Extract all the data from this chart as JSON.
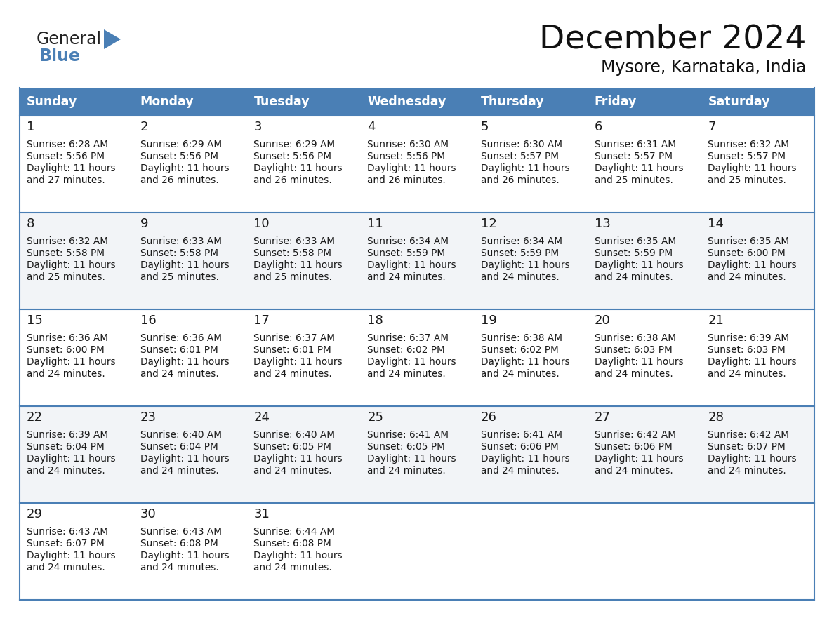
{
  "title": "December 2024",
  "subtitle": "Mysore, Karnataka, India",
  "header_color": "#4a7fb5",
  "header_text_color": "#ffffff",
  "cell_bg_even": "#f2f4f7",
  "cell_bg_odd": "#ffffff",
  "border_color": "#4a7fb5",
  "text_color": "#1a1a1a",
  "days_of_week": [
    "Sunday",
    "Monday",
    "Tuesday",
    "Wednesday",
    "Thursday",
    "Friday",
    "Saturday"
  ],
  "calendar_data": [
    [
      {
        "day": 1,
        "sunrise": "6:28 AM",
        "sunset": "5:56 PM",
        "daylight": "11 hours and 27 minutes"
      },
      {
        "day": 2,
        "sunrise": "6:29 AM",
        "sunset": "5:56 PM",
        "daylight": "11 hours and 26 minutes"
      },
      {
        "day": 3,
        "sunrise": "6:29 AM",
        "sunset": "5:56 PM",
        "daylight": "11 hours and 26 minutes"
      },
      {
        "day": 4,
        "sunrise": "6:30 AM",
        "sunset": "5:56 PM",
        "daylight": "11 hours and 26 minutes"
      },
      {
        "day": 5,
        "sunrise": "6:30 AM",
        "sunset": "5:57 PM",
        "daylight": "11 hours and 26 minutes"
      },
      {
        "day": 6,
        "sunrise": "6:31 AM",
        "sunset": "5:57 PM",
        "daylight": "11 hours and 25 minutes"
      },
      {
        "day": 7,
        "sunrise": "6:32 AM",
        "sunset": "5:57 PM",
        "daylight": "11 hours and 25 minutes"
      }
    ],
    [
      {
        "day": 8,
        "sunrise": "6:32 AM",
        "sunset": "5:58 PM",
        "daylight": "11 hours and 25 minutes"
      },
      {
        "day": 9,
        "sunrise": "6:33 AM",
        "sunset": "5:58 PM",
        "daylight": "11 hours and 25 minutes"
      },
      {
        "day": 10,
        "sunrise": "6:33 AM",
        "sunset": "5:58 PM",
        "daylight": "11 hours and 25 minutes"
      },
      {
        "day": 11,
        "sunrise": "6:34 AM",
        "sunset": "5:59 PM",
        "daylight": "11 hours and 24 minutes"
      },
      {
        "day": 12,
        "sunrise": "6:34 AM",
        "sunset": "5:59 PM",
        "daylight": "11 hours and 24 minutes"
      },
      {
        "day": 13,
        "sunrise": "6:35 AM",
        "sunset": "5:59 PM",
        "daylight": "11 hours and 24 minutes"
      },
      {
        "day": 14,
        "sunrise": "6:35 AM",
        "sunset": "6:00 PM",
        "daylight": "11 hours and 24 minutes"
      }
    ],
    [
      {
        "day": 15,
        "sunrise": "6:36 AM",
        "sunset": "6:00 PM",
        "daylight": "11 hours and 24 minutes"
      },
      {
        "day": 16,
        "sunrise": "6:36 AM",
        "sunset": "6:01 PM",
        "daylight": "11 hours and 24 minutes"
      },
      {
        "day": 17,
        "sunrise": "6:37 AM",
        "sunset": "6:01 PM",
        "daylight": "11 hours and 24 minutes"
      },
      {
        "day": 18,
        "sunrise": "6:37 AM",
        "sunset": "6:02 PM",
        "daylight": "11 hours and 24 minutes"
      },
      {
        "day": 19,
        "sunrise": "6:38 AM",
        "sunset": "6:02 PM",
        "daylight": "11 hours and 24 minutes"
      },
      {
        "day": 20,
        "sunrise": "6:38 AM",
        "sunset": "6:03 PM",
        "daylight": "11 hours and 24 minutes"
      },
      {
        "day": 21,
        "sunrise": "6:39 AM",
        "sunset": "6:03 PM",
        "daylight": "11 hours and 24 minutes"
      }
    ],
    [
      {
        "day": 22,
        "sunrise": "6:39 AM",
        "sunset": "6:04 PM",
        "daylight": "11 hours and 24 minutes"
      },
      {
        "day": 23,
        "sunrise": "6:40 AM",
        "sunset": "6:04 PM",
        "daylight": "11 hours and 24 minutes"
      },
      {
        "day": 24,
        "sunrise": "6:40 AM",
        "sunset": "6:05 PM",
        "daylight": "11 hours and 24 minutes"
      },
      {
        "day": 25,
        "sunrise": "6:41 AM",
        "sunset": "6:05 PM",
        "daylight": "11 hours and 24 minutes"
      },
      {
        "day": 26,
        "sunrise": "6:41 AM",
        "sunset": "6:06 PM",
        "daylight": "11 hours and 24 minutes"
      },
      {
        "day": 27,
        "sunrise": "6:42 AM",
        "sunset": "6:06 PM",
        "daylight": "11 hours and 24 minutes"
      },
      {
        "day": 28,
        "sunrise": "6:42 AM",
        "sunset": "6:07 PM",
        "daylight": "11 hours and 24 minutes"
      }
    ],
    [
      {
        "day": 29,
        "sunrise": "6:43 AM",
        "sunset": "6:07 PM",
        "daylight": "11 hours and 24 minutes"
      },
      {
        "day": 30,
        "sunrise": "6:43 AM",
        "sunset": "6:08 PM",
        "daylight": "11 hours and 24 minutes"
      },
      {
        "day": 31,
        "sunrise": "6:44 AM",
        "sunset": "6:08 PM",
        "daylight": "11 hours and 24 minutes"
      },
      null,
      null,
      null,
      null
    ]
  ]
}
